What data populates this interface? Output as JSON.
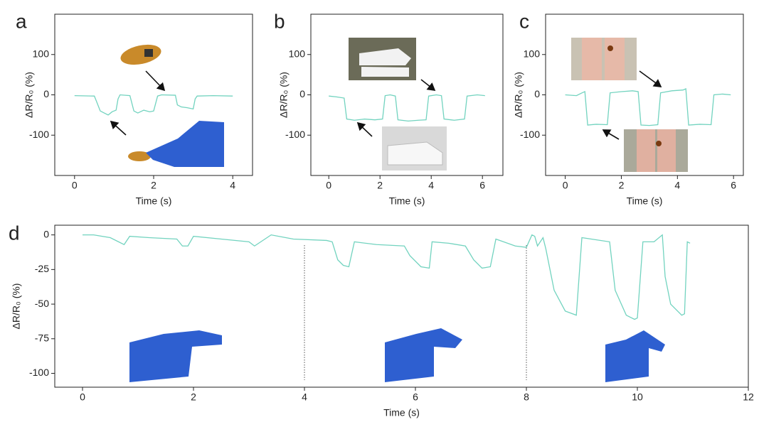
{
  "chart_data": [
    {
      "type": "line",
      "panel_label": "a",
      "xlabel": "Time (s)",
      "ylabel": "ΔR/R₀ (%)",
      "color": "#72d3bf",
      "xlim": [
        -0.5,
        4.5
      ],
      "xticks": [
        0,
        2,
        4
      ],
      "ylim": [
        -200,
        200
      ],
      "yticks": [
        -100,
        0,
        100
      ],
      "x": [
        0,
        0.5,
        0.55,
        0.65,
        0.75,
        0.85,
        0.95,
        1.05,
        1.1,
        1.15,
        1.4,
        1.5,
        1.6,
        1.75,
        1.9,
        2.0,
        2.1,
        2.2,
        2.55,
        2.6,
        2.7,
        2.85,
        3.0,
        3.05,
        3.1,
        3.5,
        4.0
      ],
      "values": [
        -2,
        -3,
        -15,
        -40,
        -45,
        -50,
        -42,
        -38,
        -10,
        0,
        -2,
        -40,
        -45,
        -38,
        -42,
        -40,
        -3,
        0,
        -1,
        -25,
        -30,
        -32,
        -35,
        -10,
        -3,
        -2,
        -3
      ]
    },
    {
      "type": "line",
      "panel_label": "b",
      "xlabel": "Time (s)",
      "ylabel": "ΔR/R₀ (%)",
      "color": "#72d3bf",
      "xlim": [
        -0.7,
        6.8
      ],
      "xticks": [
        0,
        2,
        4,
        6
      ],
      "ylim": [
        -200,
        200
      ],
      "yticks": [
        -100,
        0,
        100
      ],
      "x": [
        0,
        0.3,
        0.6,
        0.7,
        1.0,
        1.4,
        1.8,
        2.1,
        2.2,
        2.4,
        2.6,
        2.7,
        3.1,
        3.5,
        3.8,
        3.9,
        4.2,
        4.4,
        4.5,
        4.9,
        5.3,
        5.4,
        5.8,
        6.1
      ],
      "values": [
        -3,
        -5,
        -8,
        -60,
        -63,
        -60,
        -62,
        -60,
        -2,
        0,
        -3,
        -62,
        -65,
        -63,
        -62,
        -3,
        0,
        -2,
        -60,
        -63,
        -60,
        -3,
        0,
        -2
      ]
    },
    {
      "type": "line",
      "panel_label": "c",
      "xlabel": "Time (s)",
      "ylabel": "ΔR/R₀ (%)",
      "color": "#72d3bf",
      "xlim": [
        -0.7,
        6.35
      ],
      "xticks": [
        0,
        2,
        4,
        6
      ],
      "ylim": [
        -200,
        200
      ],
      "yticks": [
        -100,
        0,
        100
      ],
      "x": [
        0,
        0.4,
        0.6,
        0.7,
        0.8,
        1.1,
        1.5,
        1.6,
        2.0,
        2.4,
        2.6,
        2.7,
        3.0,
        3.3,
        3.4,
        3.8,
        4.2,
        4.3,
        4.4,
        4.8,
        5.2,
        5.3,
        5.6,
        5.9
      ],
      "values": [
        0,
        -2,
        5,
        8,
        -75,
        -73,
        -74,
        5,
        8,
        10,
        8,
        -75,
        -76,
        -74,
        5,
        10,
        12,
        15,
        -75,
        -73,
        -74,
        0,
        2,
        0
      ]
    },
    {
      "type": "line",
      "panel_label": "d",
      "xlabel": "Time (s)",
      "ylabel": "ΔR/R₀ (%)",
      "color": "#72d3bf",
      "xlim": [
        -0.5,
        12
      ],
      "xticks": [
        0,
        2,
        4,
        6,
        8,
        10,
        12
      ],
      "ylim": [
        -110,
        7
      ],
      "yticks": [
        -100,
        -75,
        -50,
        -25,
        0
      ],
      "vlines": [
        4,
        8
      ],
      "x": [
        0,
        0.2,
        0.5,
        0.65,
        0.75,
        0.85,
        1.2,
        1.7,
        1.8,
        1.9,
        2.0,
        2.5,
        3.0,
        3.1,
        3.4,
        3.8,
        4.4,
        4.5,
        4.6,
        4.7,
        4.8,
        4.9,
        5.3,
        5.8,
        5.9,
        6.1,
        6.25,
        6.3,
        6.6,
        6.9,
        7.05,
        7.2,
        7.35,
        7.45,
        7.8,
        8.0,
        8.1,
        8.15,
        8.2,
        8.3,
        8.35,
        8.5,
        8.7,
        8.9,
        9.0,
        9.5,
        9.6,
        9.8,
        9.95,
        10.0,
        10.1,
        10.3,
        10.45,
        10.5,
        10.6,
        10.8,
        10.85,
        10.9,
        10.95
      ],
      "values": [
        0,
        0,
        -2,
        -5,
        -7,
        -1,
        -2,
        -3,
        -8,
        -8,
        -1,
        -3,
        -5,
        -8,
        0,
        -3,
        -4,
        -5,
        -18,
        -22,
        -23,
        -5,
        -7,
        -8,
        -15,
        -23,
        -24,
        -5,
        -6,
        -8,
        -18,
        -24,
        -23,
        -3,
        -8,
        -9,
        0,
        -1,
        -8,
        -2,
        -10,
        -40,
        -55,
        -58,
        -2,
        -5,
        -40,
        -58,
        -61,
        -60,
        -5,
        -5,
        0,
        -30,
        -50,
        -58,
        -57,
        -5,
        -6
      ]
    }
  ]
}
